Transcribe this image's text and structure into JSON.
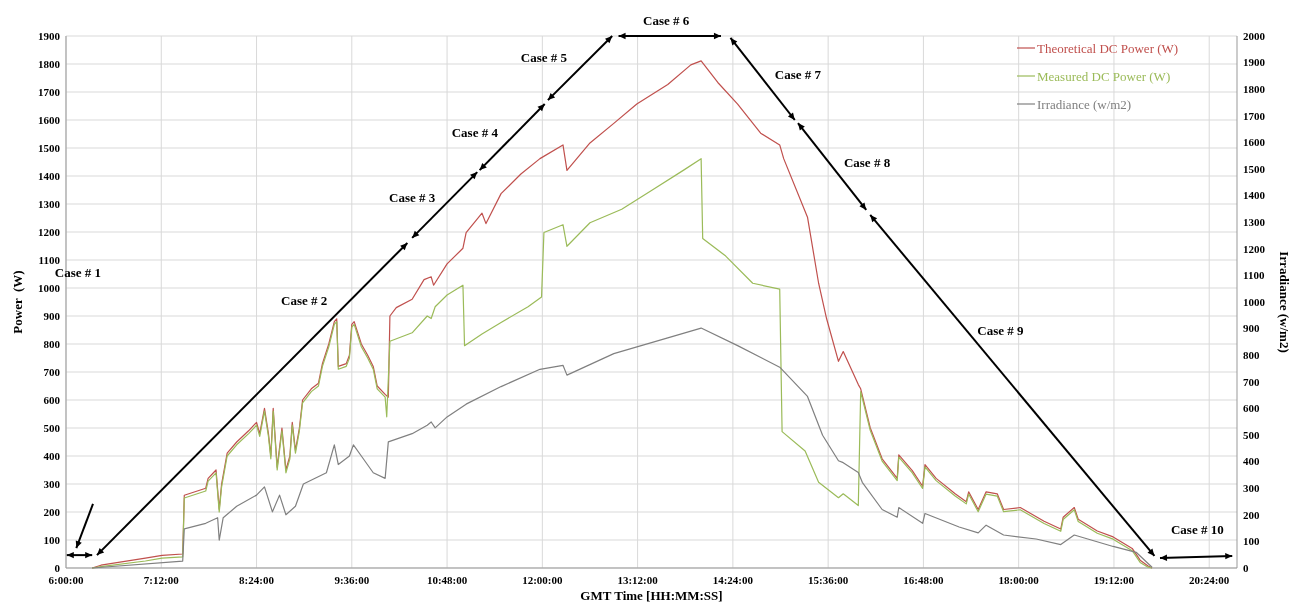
{
  "chart_data": {
    "type": "line",
    "xlabel": "GMT Time [HH:MM:SS]",
    "ylabel": "Power  (W)",
    "y2label": "Irradiance (w/m2)",
    "xlim": [
      6,
      20.75
    ],
    "xticks": [
      {
        "value": 6,
        "label": "6:00:00"
      },
      {
        "value": 7.2,
        "label": "7:12:00"
      },
      {
        "value": 8.4,
        "label": "8:24:00"
      },
      {
        "value": 9.6,
        "label": "9:36:00"
      },
      {
        "value": 10.8,
        "label": "10:48:00"
      },
      {
        "value": 12,
        "label": "12:00:00"
      },
      {
        "value": 13.2,
        "label": "13:12:00"
      },
      {
        "value": 14.4,
        "label": "14:24:00"
      },
      {
        "value": 15.6,
        "label": "15:36:00"
      },
      {
        "value": 16.8,
        "label": "16:48:00"
      },
      {
        "value": 18,
        "label": "18:00:00"
      },
      {
        "value": 19.2,
        "label": "19:12:00"
      },
      {
        "value": 20.4,
        "label": "20:24:00"
      }
    ],
    "ylim": [
      0,
      1900
    ],
    "yticks": [
      0,
      100,
      200,
      300,
      400,
      500,
      600,
      700,
      800,
      900,
      1000,
      1100,
      1200,
      1300,
      1400,
      1500,
      1600,
      1700,
      1800,
      1900
    ],
    "y2lim": [
      0,
      2000
    ],
    "y2ticks": [
      0,
      100,
      200,
      300,
      400,
      500,
      600,
      700,
      800,
      900,
      1000,
      1100,
      1200,
      1300,
      1400,
      1500,
      1600,
      1700,
      1800,
      1900,
      2000
    ],
    "grid": true,
    "legend": "top right",
    "marker": "none",
    "line_style": "solid",
    "series": [
      {
        "name": "Theoretical DC Power (W)",
        "color": "#c0504d",
        "x": [
          6.33,
          6.44,
          7.0,
          7.21,
          7.47,
          7.49,
          7.76,
          7.79,
          7.89,
          7.93,
          7.96,
          8.03,
          8.15,
          8.3,
          8.4,
          8.44,
          8.5,
          8.55,
          8.58,
          8.61,
          8.66,
          8.72,
          8.77,
          8.82,
          8.85,
          8.89,
          8.94,
          8.98,
          9.09,
          9.18,
          9.23,
          9.31,
          9.38,
          9.41,
          9.43,
          9.53,
          9.57,
          9.6,
          9.63,
          9.72,
          9.8,
          9.87,
          9.92,
          10.02,
          10.06,
          10.08,
          10.16,
          10.36,
          10.51,
          10.6,
          10.63,
          10.8,
          11.0,
          11.04,
          11.24,
          11.29,
          11.48,
          11.73,
          11.97,
          12.26,
          12.31,
          12.6,
          12.9,
          13.19,
          13.58,
          13.87,
          14.0,
          14.21,
          14.46,
          14.75,
          14.99,
          15.04,
          15.34,
          15.48,
          15.58,
          15.73,
          15.79,
          15.98,
          16.01,
          16.13,
          16.28,
          16.47,
          16.49,
          16.66,
          16.79,
          16.82,
          16.96,
          17.2,
          17.34,
          17.37,
          17.49,
          17.59,
          17.73,
          17.81,
          18.02,
          18.32,
          18.53,
          18.56,
          18.7,
          18.75,
          18.99,
          19.19,
          19.43,
          19.53,
          19.63,
          19.68
        ],
        "values": [
          0,
          10,
          35,
          45,
          50,
          260,
          285,
          320,
          350,
          210,
          300,
          410,
          450,
          490,
          520,
          480,
          570,
          480,
          400,
          570,
          360,
          500,
          350,
          400,
          520,
          420,
          500,
          600,
          640,
          660,
          730,
          800,
          880,
          890,
          720,
          730,
          760,
          870,
          880,
          800,
          760,
          720,
          650,
          620,
          610,
          900,
          930,
          960,
          1030,
          1040,
          1010,
          1086,
          1142,
          1198,
          1267,
          1230,
          1337,
          1407,
          1462,
          1511,
          1420,
          1518,
          1588,
          1657,
          1727,
          1797,
          1811,
          1734,
          1657,
          1553,
          1511,
          1462,
          1253,
          1017,
          891,
          738,
          773,
          655,
          640,
          501,
          390,
          320,
          404,
          348,
          292,
          369,
          320,
          265,
          237,
          272,
          209,
          272,
          265,
          209,
          216,
          167,
          139,
          181,
          216,
          174,
          132,
          111,
          70,
          28,
          7,
          0
        ]
      },
      {
        "name": "Measured DC Power (W)",
        "color": "#9bbb59",
        "x": [
          6.33,
          6.44,
          7.0,
          7.21,
          7.47,
          7.49,
          7.76,
          7.79,
          7.89,
          7.93,
          7.96,
          8.03,
          8.15,
          8.3,
          8.4,
          8.44,
          8.5,
          8.55,
          8.58,
          8.61,
          8.66,
          8.72,
          8.77,
          8.82,
          8.85,
          8.89,
          8.94,
          8.98,
          9.09,
          9.18,
          9.23,
          9.31,
          9.38,
          9.41,
          9.43,
          9.53,
          9.57,
          9.6,
          9.63,
          9.72,
          9.8,
          9.87,
          9.92,
          10.02,
          10.04,
          10.08,
          10.36,
          10.55,
          10.6,
          10.65,
          10.8,
          11.0,
          11.02,
          11.24,
          11.48,
          11.82,
          11.99,
          12.02,
          12.26,
          12.31,
          12.6,
          13.0,
          13.39,
          13.78,
          14.0,
          14.02,
          14.31,
          14.65,
          14.99,
          15.02,
          15.31,
          15.48,
          15.73,
          15.79,
          15.98,
          16.01,
          16.13,
          16.28,
          16.47,
          16.49,
          16.66,
          16.79,
          16.82,
          16.96,
          17.2,
          17.34,
          17.37,
          17.49,
          17.59,
          17.73,
          17.81,
          18.02,
          18.32,
          18.53,
          18.56,
          18.7,
          18.75,
          18.99,
          19.19,
          19.43,
          19.53,
          19.63,
          19.68
        ],
        "values": [
          0,
          5,
          25,
          35,
          40,
          250,
          275,
          310,
          340,
          200,
          290,
          400,
          440,
          480,
          510,
          470,
          560,
          470,
          390,
          560,
          350,
          490,
          340,
          390,
          510,
          410,
          490,
          590,
          630,
          650,
          720,
          790,
          870,
          880,
          710,
          720,
          750,
          860,
          870,
          790,
          750,
          710,
          640,
          610,
          540,
          810,
          840,
          900,
          891,
          933,
          975,
          1010,
          794,
          836,
          877,
          933,
          968,
          1198,
          1226,
          1149,
          1233,
          1281,
          1351,
          1421,
          1462,
          1177,
          1114,
          1017,
          996,
          487,
          418,
          306,
          251,
          265,
          223,
          630,
          492,
          382,
          312,
          396,
          340,
          284,
          361,
          312,
          257,
          229,
          264,
          201,
          264,
          257,
          201,
          208,
          159,
          131,
          173,
          208,
          166,
          124,
          103,
          62,
          20,
          3,
          0
        ]
      },
      {
        "name": "Irradiance (w/m2)",
        "color": "#808080",
        "axis": "y2",
        "x": [
          6.33,
          7.47,
          7.49,
          7.76,
          7.91,
          7.93,
          7.98,
          8.15,
          8.4,
          8.5,
          8.6,
          8.69,
          8.77,
          8.89,
          8.99,
          9.28,
          9.38,
          9.43,
          9.57,
          9.62,
          9.72,
          9.87,
          10.02,
          10.06,
          10.36,
          10.55,
          10.6,
          10.65,
          10.8,
          11.04,
          11.48,
          11.97,
          12.26,
          12.31,
          12.9,
          13.58,
          14.0,
          14.46,
          14.99,
          15.34,
          15.53,
          15.73,
          15.79,
          15.98,
          16.03,
          16.28,
          16.47,
          16.49,
          16.79,
          16.82,
          17.25,
          17.49,
          17.59,
          17.81,
          18.22,
          18.53,
          18.7,
          19.19,
          19.48,
          19.68
        ],
        "values": [
          0,
          26,
          147,
          168,
          189,
          105,
          189,
          232,
          274,
          305,
          211,
          274,
          200,
          232,
          316,
          358,
          463,
          389,
          421,
          463,
          421,
          358,
          337,
          474,
          505,
          537,
          549,
          527,
          568,
          616,
          682,
          747,
          762,
          725,
          806,
          865,
          902,
          836,
          755,
          645,
          499,
          403,
          396,
          359,
          322,
          220,
          191,
          227,
          168,
          205,
          154,
          132,
          161,
          124,
          109,
          88,
          124,
          81,
          59,
          3
        ]
      }
    ],
    "annotations": [
      "Case # 1",
      "Case # 2",
      "Case # 3",
      "Case # 4",
      "Case # 5",
      "Case # 6",
      "Case # 7",
      "Case # 8",
      "Case # 9",
      "Case # 10"
    ]
  }
}
